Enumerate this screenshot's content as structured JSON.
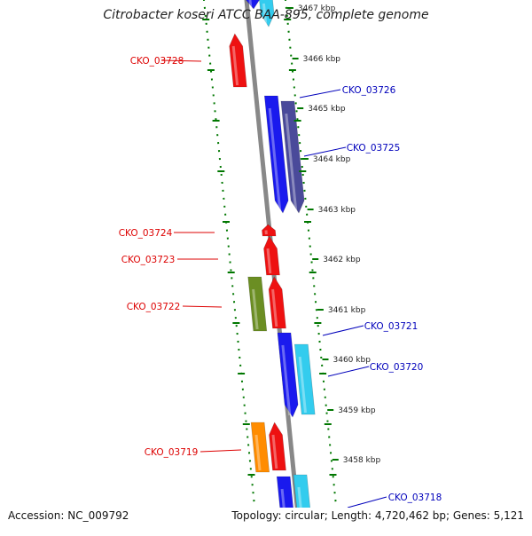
{
  "title": "Citrobacter koseri ATCC BAA-895, complete genome",
  "footer": {
    "accession": "Accession: NC_009792",
    "topology": "Topology: circular; Length: 4,720,462 bp; Genes: 5,121"
  },
  "colors": {
    "red": "#ee1111",
    "blue": "#1a1aee",
    "navy": "#4a4a9a",
    "cyan": "#33ccee",
    "olive": "#6b8e23",
    "orange": "#ff8c00",
    "backbone": "#888888",
    "tick": "#007700",
    "reverse_label": "#dd0000",
    "forward_label": "#0000bb"
  },
  "ticks": [
    {
      "label": "3467 kbp"
    },
    {
      "label": "3466 kbp"
    },
    {
      "label": "3465 kbp"
    },
    {
      "label": "3464 kbp"
    },
    {
      "label": "3463 kbp"
    },
    {
      "label": "3462 kbp"
    },
    {
      "label": "3461 kbp"
    },
    {
      "label": "3460 kbp"
    },
    {
      "label": "3459 kbp"
    },
    {
      "label": "3458 kbp"
    }
  ],
  "gene_labels": [
    {
      "id": "CKO_03728",
      "strand": "reverse"
    },
    {
      "id": "CKO_03726",
      "strand": "forward"
    },
    {
      "id": "CKO_03725",
      "strand": "forward"
    },
    {
      "id": "CKO_03724",
      "strand": "reverse"
    },
    {
      "id": "CKO_03723",
      "strand": "reverse"
    },
    {
      "id": "CKO_03722",
      "strand": "reverse"
    },
    {
      "id": "CKO_03721",
      "strand": "forward"
    },
    {
      "id": "CKO_03720",
      "strand": "forward"
    },
    {
      "id": "CKO_03719",
      "strand": "reverse"
    },
    {
      "id": "CKO_03718",
      "strand": "forward"
    }
  ]
}
